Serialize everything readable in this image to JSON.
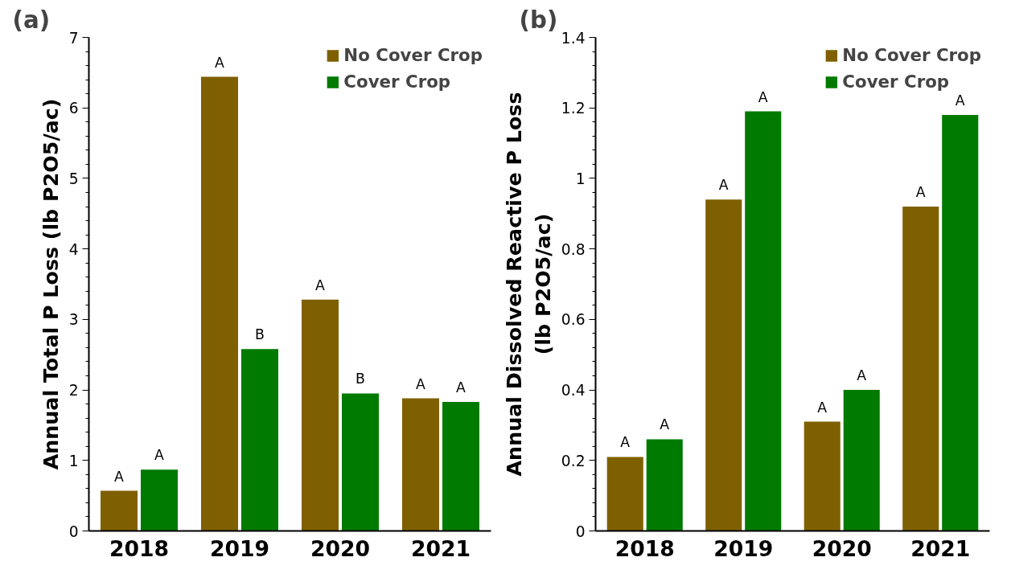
{
  "chart_data": [
    {
      "type": "bar",
      "title": "(a)",
      "ylabel": "Annual Total P Loss (lb P2O5/ac)",
      "categories": [
        "2018",
        "2019",
        "2020",
        "2021"
      ],
      "series": [
        {
          "name": "No Cover Crop",
          "color": "#7f6000",
          "values": [
            0.57,
            6.44,
            3.28,
            1.88
          ]
        },
        {
          "name": "Cover Crop",
          "color": "#007a00",
          "values": [
            0.87,
            2.58,
            1.95,
            1.83
          ]
        }
      ],
      "ylim": [
        0,
        7
      ],
      "yticks": [
        0,
        1,
        2,
        3,
        4,
        5,
        6,
        7
      ],
      "grid": false,
      "legend": "top right",
      "annotations": [
        {
          "text": "A",
          "x": "2018",
          "y": 0.57
        },
        {
          "text": "A",
          "x": "2018",
          "y": 0.87
        },
        {
          "text": "A",
          "x": "2019",
          "y": 6.44
        },
        {
          "text": "B",
          "x": "2019",
          "y": 2.58
        },
        {
          "text": "A",
          "x": "2020",
          "y": 3.28
        },
        {
          "text": "B",
          "x": "2020",
          "y": 1.95
        },
        {
          "text": "A",
          "x": "2021",
          "y": 1.88
        },
        {
          "text": "A",
          "x": "2021",
          "y": 1.83
        }
      ]
    },
    {
      "type": "bar",
      "title": "(b)",
      "ylabel": "Annual Dissolved Reactive P Loss\n(lb P2O5/ac)",
      "categories": [
        "2018",
        "2019",
        "2020",
        "2021"
      ],
      "series": [
        {
          "name": "No Cover Crop",
          "color": "#7f6000",
          "values": [
            0.21,
            0.94,
            0.31,
            0.92
          ]
        },
        {
          "name": "Cover Crop",
          "color": "#007a00",
          "values": [
            0.26,
            1.19,
            0.4,
            1.18
          ]
        }
      ],
      "ylim": [
        0,
        1.4
      ],
      "yticks": [
        0,
        0.2,
        0.4,
        0.6,
        0.8,
        1,
        1.2,
        1.4
      ],
      "grid": false,
      "legend": "top right",
      "annotations": [
        {
          "text": "A",
          "x": "2018",
          "y": 0.21
        },
        {
          "text": "A",
          "x": "2018",
          "y": 0.26
        },
        {
          "text": "A",
          "x": "2019",
          "y": 0.94
        },
        {
          "text": "A",
          "x": "2019",
          "y": 1.19
        },
        {
          "text": "A",
          "x": "2020",
          "y": 0.31
        },
        {
          "text": "A",
          "x": "2020",
          "y": 0.4
        },
        {
          "text": "A",
          "x": "2021",
          "y": 0.92
        },
        {
          "text": "A",
          "x": "2021",
          "y": 1.18
        }
      ]
    }
  ]
}
